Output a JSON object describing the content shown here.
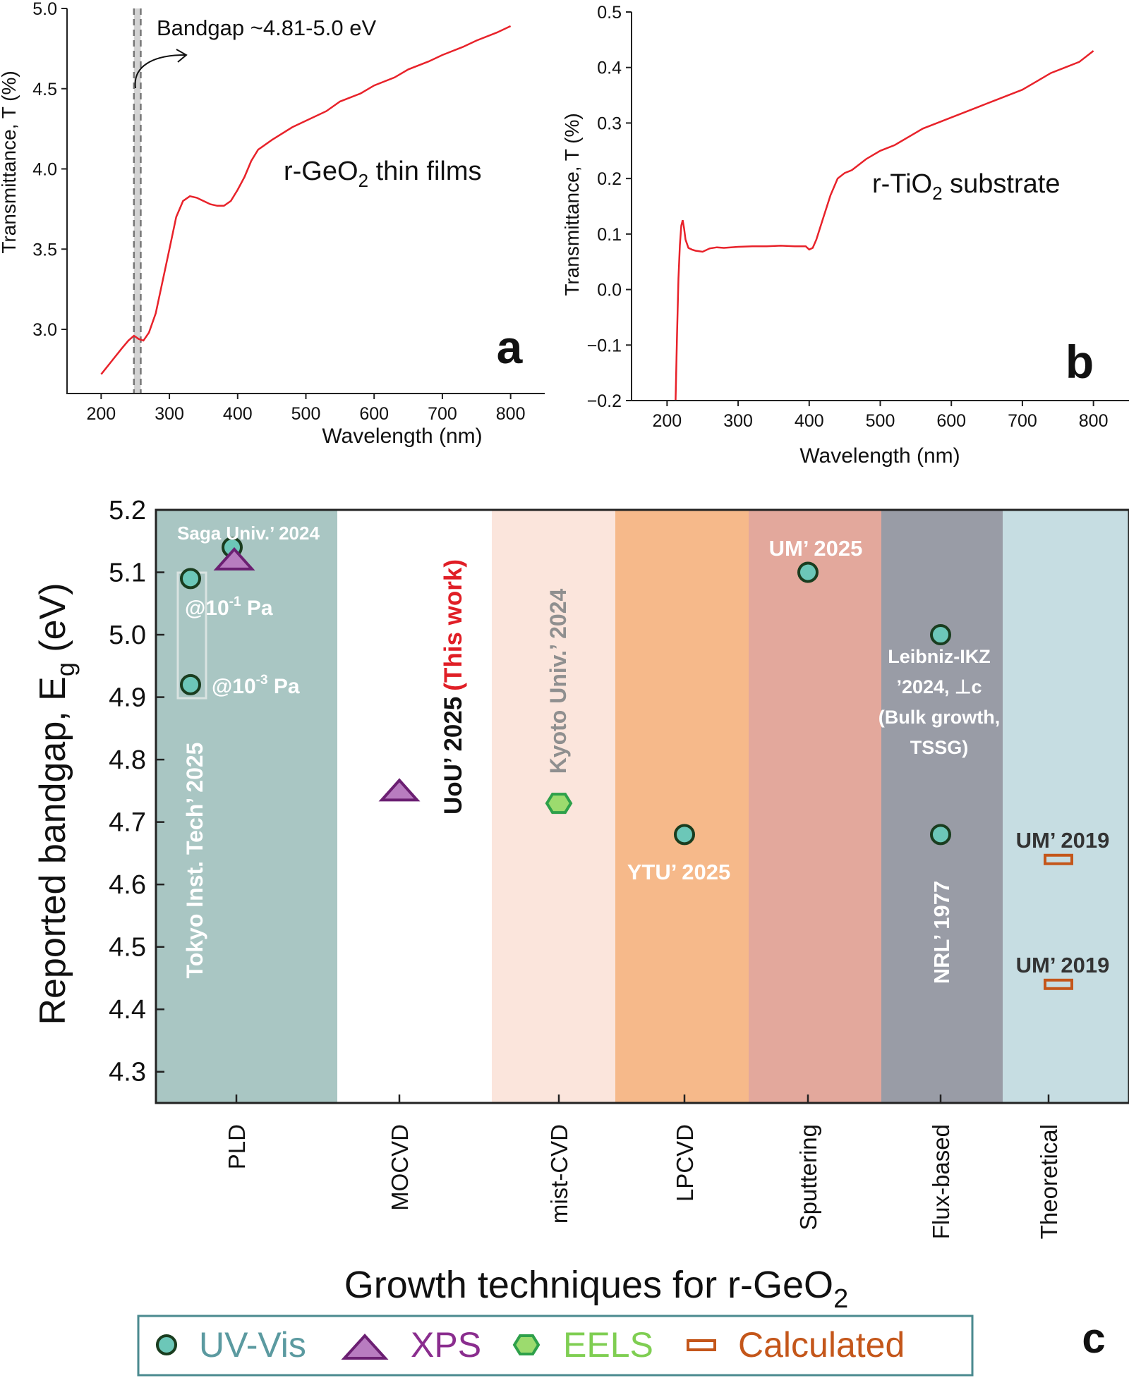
{
  "panels": {
    "a": {
      "letter": "a"
    },
    "b": {
      "letter": "b"
    },
    "c": {
      "letter": "c"
    }
  },
  "chart_data": [
    {
      "panel": "a",
      "type": "line",
      "xlabel": "Wavelength (nm)",
      "ylabel": "Transmittance, T (%)",
      "xlim": [
        150,
        850
      ],
      "ylim": [
        2.6,
        5.0
      ],
      "xticks": [
        200,
        300,
        400,
        500,
        600,
        700,
        800
      ],
      "yticks": [
        3.0,
        3.5,
        4.0,
        4.5,
        5.0
      ],
      "annotation": "Bandgap ~4.81-5.0 eV",
      "band_lines_nm": [
        248,
        258
      ],
      "label_main": "r-GeO",
      "label_sub": "2",
      "label_tail": " thin films",
      "color": "#e8222a",
      "series": [
        {
          "x": [
            200,
            215,
            230,
            240,
            248,
            255,
            262,
            270,
            280,
            290,
            300,
            310,
            320,
            330,
            340,
            350,
            360,
            370,
            380,
            390,
            400,
            410,
            420,
            430,
            450,
            480,
            500,
            530,
            550,
            580,
            600,
            630,
            650,
            680,
            700,
            730,
            750,
            780,
            800
          ],
          "y": [
            2.72,
            2.8,
            2.88,
            2.93,
            2.96,
            2.94,
            2.93,
            2.98,
            3.1,
            3.3,
            3.5,
            3.7,
            3.8,
            3.83,
            3.82,
            3.8,
            3.78,
            3.77,
            3.77,
            3.8,
            3.87,
            3.95,
            4.05,
            4.12,
            4.18,
            4.26,
            4.3,
            4.36,
            4.42,
            4.47,
            4.52,
            4.57,
            4.62,
            4.67,
            4.71,
            4.76,
            4.8,
            4.85,
            4.89
          ]
        }
      ]
    },
    {
      "panel": "b",
      "type": "line",
      "xlabel": "Wavelength (nm)",
      "ylabel": "Transmittance, T (%)",
      "xlim": [
        150,
        850
      ],
      "ylim": [
        -0.2,
        0.5
      ],
      "xticks": [
        200,
        300,
        400,
        500,
        600,
        700,
        800
      ],
      "yticks": [
        -0.2,
        -0.1,
        0.0,
        0.1,
        0.2,
        0.3,
        0.4,
        0.5
      ],
      "label_main": "r-TiO",
      "label_sub": "2",
      "label_tail": " substrate",
      "color": "#e8222a",
      "series": [
        {
          "x": [
            212,
            214,
            216,
            218,
            220,
            222,
            224,
            226,
            230,
            235,
            240,
            250,
            260,
            270,
            280,
            300,
            320,
            340,
            360,
            380,
            395,
            400,
            405,
            410,
            420,
            430,
            440,
            450,
            460,
            470,
            480,
            500,
            520,
            540,
            560,
            580,
            600,
            620,
            640,
            660,
            680,
            700,
            720,
            740,
            760,
            780,
            800
          ],
          "y": [
            -0.2,
            -0.08,
            0.02,
            0.08,
            0.115,
            0.125,
            0.11,
            0.09,
            0.075,
            0.072,
            0.07,
            0.068,
            0.074,
            0.076,
            0.075,
            0.077,
            0.078,
            0.078,
            0.079,
            0.078,
            0.078,
            0.072,
            0.075,
            0.09,
            0.13,
            0.17,
            0.2,
            0.21,
            0.215,
            0.225,
            0.235,
            0.25,
            0.26,
            0.275,
            0.29,
            0.3,
            0.31,
            0.32,
            0.33,
            0.34,
            0.35,
            0.36,
            0.375,
            0.39,
            0.4,
            0.41,
            0.43
          ]
        }
      ]
    },
    {
      "panel": "c",
      "type": "scatter",
      "xlabel_main": "Growth techniques for r-GeO",
      "xlabel_sub": "2",
      "ylabel_main": "Reported bandgap, E",
      "ylabel_sub": "g",
      "ylabel_tail": " (eV)",
      "ylim": [
        4.25,
        5.2
      ],
      "yticks": [
        4.3,
        4.4,
        4.5,
        4.6,
        4.7,
        4.8,
        4.9,
        5.0,
        5.1,
        5.2
      ],
      "categories": [
        "PLD",
        "MOCVD",
        "mist-CVD",
        "LPCVD",
        "Sputtering",
        "Flux-based",
        "Theoretical"
      ],
      "band_colors": [
        "#a9c6c3",
        "#ffffff",
        "#fbe5dc",
        "#f6b98a",
        "#e3a89c",
        "#999ca6",
        "#c6dde2"
      ],
      "legend": [
        {
          "key": "uvvis",
          "label": "UV-Vis",
          "color": "#5b9aa0"
        },
        {
          "key": "xps",
          "label": "XPS",
          "color": "#8a2d8e"
        },
        {
          "key": "eels",
          "label": "EELS",
          "color": "#7fce52"
        },
        {
          "key": "calc",
          "label": "Calculated",
          "color": "#c4561a"
        }
      ],
      "points": [
        {
          "category": "PLD",
          "method": "uvvis",
          "value": 5.14
        },
        {
          "category": "PLD",
          "method": "xps",
          "value": 5.12
        },
        {
          "category": "PLD",
          "method": "uvvis",
          "value": 5.09
        },
        {
          "category": "PLD",
          "method": "uvvis",
          "value": 4.92
        },
        {
          "category": "MOCVD",
          "method": "xps",
          "value": 4.75
        },
        {
          "category": "mist-CVD",
          "method": "eels",
          "value": 4.73
        },
        {
          "category": "LPCVD",
          "method": "uvvis",
          "value": 4.68
        },
        {
          "category": "Sputtering",
          "method": "uvvis",
          "value": 5.1
        },
        {
          "category": "Flux-based",
          "method": "uvvis",
          "value": 5.0
        },
        {
          "category": "Flux-based",
          "method": "uvvis",
          "value": 4.68
        },
        {
          "category": "Theoretical",
          "method": "calc",
          "value": 4.64
        },
        {
          "category": "Theoretical",
          "method": "calc",
          "value": 4.44
        }
      ],
      "annotations": {
        "saga": "Saga Univ.’ 2024",
        "pa1_pre": "@10",
        "pa1_exp": "-1",
        "pa1_post": " Pa",
        "pa3_pre": "@10",
        "pa3_exp": "-3",
        "pa3_post": " Pa",
        "tokyo": "Tokyo Inst. Tech’ 2025",
        "uou": "UoU’ 2025",
        "this_work": "(This work)",
        "kyoto": "Kyoto Univ.’ 2024",
        "ytu": "YTU’ 2025",
        "um2025": "UM’ 2025",
        "leibniz_1": "Leibniz-IKZ",
        "leibniz_2": "’2024, ⊥c",
        "leibniz_3": "(Bulk growth,",
        "leibniz_4": "TSSG)",
        "nrl": "NRL’ 1977",
        "um2019_a": "UM’ 2019",
        "um2019_b": "UM’ 2019"
      }
    }
  ]
}
